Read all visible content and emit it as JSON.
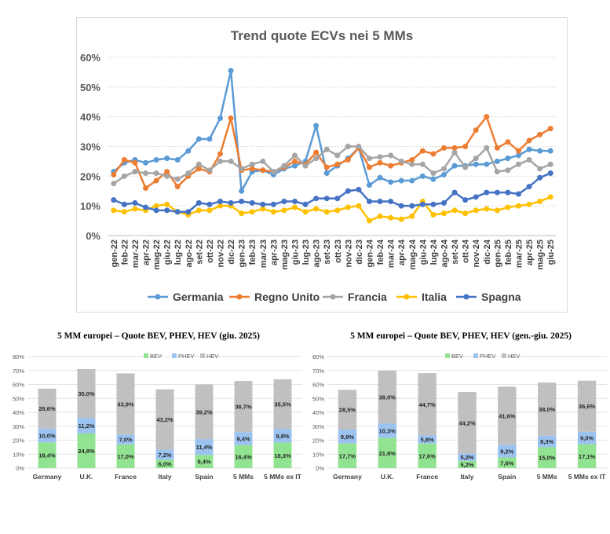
{
  "chart_data": [
    {
      "type": "line",
      "title": "Trend quote ECVs nei 5 MMs",
      "x": [
        "gen-22",
        "feb-22",
        "mar-22",
        "apr-22",
        "mag-22",
        "giu-22",
        "lug-22",
        "ago-22",
        "set-22",
        "ott-22",
        "nov-22",
        "dic-22",
        "gen-23",
        "feb-23",
        "mar-23",
        "apr-23",
        "mag-23",
        "giu-23",
        "lug-23",
        "ago-23",
        "set-23",
        "ott-23",
        "nov-23",
        "dic-23",
        "gen-24",
        "feb-24",
        "mar-24",
        "apr-24",
        "mag-24",
        "giu-24",
        "lug-24",
        "ago-24",
        "set-24",
        "ott-24",
        "nov-24",
        "dic-24",
        "gen-25",
        "feb-25",
        "mar-25",
        "apr-25",
        "mag-25",
        "giu-25"
      ],
      "ylim": [
        0,
        60
      ],
      "yticks": [
        "0%",
        "10%",
        "20%",
        "30%",
        "40%",
        "50%",
        "60%"
      ],
      "grid": true,
      "legend_position": "bottom",
      "series": [
        {
          "name": "Germania",
          "color": "#5b9bd5",
          "values": [
            21.5,
            24.5,
            25.5,
            24.5,
            25.5,
            26,
            25.5,
            28.5,
            32.5,
            32.5,
            39.5,
            55.5,
            15,
            21.5,
            22,
            20.5,
            22.5,
            23.5,
            25,
            37,
            21,
            23.5,
            26,
            29.5,
            17,
            19.5,
            18,
            18.5,
            18.5,
            20,
            19,
            20.5,
            23.5,
            23.5,
            24,
            24,
            25,
            26,
            27,
            29,
            28.5,
            28.5
          ]
        },
        {
          "name": "Regno Unito",
          "color": "#ed7d31",
          "values": [
            20.5,
            25.5,
            24.5,
            16,
            18.5,
            21.5,
            16.5,
            20,
            22.5,
            21.5,
            27.5,
            39.5,
            22,
            22.5,
            22,
            21.5,
            23,
            25,
            24,
            28,
            23,
            24,
            25.5,
            29.5,
            23,
            24.5,
            23.5,
            24.5,
            25.5,
            28.5,
            27.5,
            29.5,
            29.5,
            30,
            35.5,
            40,
            29.5,
            31.5,
            28.5,
            32,
            34,
            36
          ]
        },
        {
          "name": "Francia",
          "color": "#a5a5a5",
          "values": [
            17.5,
            20,
            21.5,
            21,
            21,
            20,
            19,
            21,
            24,
            22,
            25,
            25,
            22.5,
            24,
            25,
            21.5,
            23.5,
            27,
            23.5,
            26,
            29,
            27,
            30,
            30,
            26,
            26.5,
            27,
            25,
            24,
            24,
            21,
            22.5,
            28,
            23,
            26,
            29.5,
            21.5,
            22,
            24,
            25.5,
            22.5,
            24
          ]
        },
        {
          "name": "Italia",
          "color": "#ffc000",
          "values": [
            8.5,
            8,
            9,
            8.5,
            10,
            10.5,
            8,
            7,
            8.5,
            8.5,
            10,
            10,
            7.5,
            8,
            9,
            8,
            8.5,
            9.5,
            8,
            9,
            8,
            8.5,
            9.5,
            10,
            5,
            6.5,
            6,
            5.5,
            6.5,
            11.5,
            7,
            7.5,
            8.5,
            7.5,
            8.5,
            9,
            8.5,
            9.5,
            10,
            10.5,
            11.5,
            13
          ]
        },
        {
          "name": "Spagna",
          "color": "#4472c4",
          "values": [
            12,
            10.5,
            11,
            9.5,
            8.5,
            8.5,
            8,
            8,
            11,
            10.5,
            11.5,
            11,
            11.5,
            11,
            10.5,
            10.5,
            11.5,
            11.5,
            10.5,
            12.5,
            12.5,
            12.5,
            15,
            15.5,
            11.5,
            11.5,
            11.5,
            10,
            10,
            10.5,
            10.5,
            11,
            14.5,
            12,
            13,
            14.5,
            14.5,
            14.5,
            14,
            16.5,
            19.5,
            21
          ]
        }
      ]
    },
    {
      "type": "bar",
      "stacked": true,
      "title": "5 MM europei – Quote BEV, PHEV, HEV (giu. 2025)",
      "categories": [
        "Germany",
        "U.K.",
        "France",
        "Italy",
        "Spain",
        "5 MMs",
        "5 MMs ex IT"
      ],
      "ylim": [
        0,
        80
      ],
      "yticks": [
        "0%",
        "10%",
        "20%",
        "30%",
        "40%",
        "50%",
        "60%",
        "70%",
        "80%"
      ],
      "grid": true,
      "legend_position": "top",
      "series": [
        {
          "name": "BEV",
          "color": "#92e391",
          "values": [
            18.4,
            24.8,
            17.0,
            6.0,
            9.4,
            16.4,
            18.3
          ],
          "labels": [
            "18,4%",
            "24,8%",
            "17,0%",
            "6,0%",
            "9,4%",
            "16,4%",
            "18,3%"
          ]
        },
        {
          "name": "PHEV",
          "color": "#9cc3f0",
          "values": [
            10.0,
            11.2,
            7.0,
            7.2,
            11.4,
            9.4,
            9.8
          ],
          "labels": [
            "10,0%",
            "11,2%",
            "7,0%",
            "7,2%",
            "11,4%",
            "9,4%",
            "9,8%"
          ]
        },
        {
          "name": "HEV",
          "color": "#c0c0c0",
          "values": [
            28.6,
            35.0,
            43.9,
            43.2,
            39.2,
            36.7,
            35.5
          ],
          "labels": [
            "28,6%",
            "35,0%",
            "43,9%",
            "43,2%",
            "39,2%",
            "36,7%",
            "35,5%"
          ]
        }
      ]
    },
    {
      "type": "bar",
      "stacked": true,
      "title": "5 MM europei – Quote BEV, PHEV, HEV (gen.-giu. 2025)",
      "categories": [
        "Germany",
        "U.K.",
        "France",
        "Italy",
        "Spain",
        "5 MMs",
        "5 MMs ex IT"
      ],
      "ylim": [
        0,
        80
      ],
      "yticks": [
        "0%",
        "10%",
        "20%",
        "30%",
        "40%",
        "50%",
        "60%",
        "70%",
        "80%"
      ],
      "grid": true,
      "legend_position": "top",
      "series": [
        {
          "name": "BEV",
          "color": "#92e391",
          "values": [
            17.7,
            21.6,
            17.6,
            5.2,
            7.6,
            15.0,
            17.1
          ],
          "labels": [
            "17,7%",
            "21,6%",
            "17,6%",
            "5,2%",
            "7,6%",
            "15,0%",
            "17,1%"
          ]
        },
        {
          "name": "PHEV",
          "color": "#9cc3f0",
          "values": [
            9.9,
            10.3,
            5.8,
            5.2,
            9.2,
            8.3,
            9.0
          ],
          "labels": [
            "9,9%",
            "10,3%",
            "5,8%",
            "5,2%",
            "9,2%",
            "8,3%",
            "9,0%"
          ]
        },
        {
          "name": "HEV",
          "color": "#c0c0c0",
          "values": [
            28.5,
            38.0,
            44.7,
            44.2,
            41.6,
            38.0,
            36.6
          ],
          "labels": [
            "28,5%",
            "38,0%",
            "44,7%",
            "44,2%",
            "41,6%",
            "38,0%",
            "36,6%"
          ]
        }
      ]
    }
  ]
}
